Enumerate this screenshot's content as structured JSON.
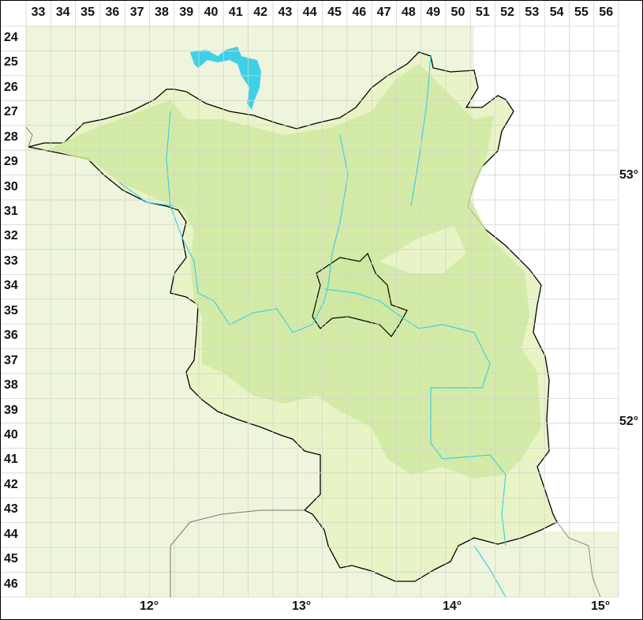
{
  "map": {
    "columns": [
      "33",
      "34",
      "35",
      "36",
      "37",
      "38",
      "39",
      "40",
      "41",
      "42",
      "43",
      "44",
      "45",
      "46",
      "47",
      "48",
      "49",
      "50",
      "51",
      "52",
      "53",
      "54",
      "55",
      "56"
    ],
    "rows": [
      "24",
      "25",
      "26",
      "27",
      "28",
      "29",
      "30",
      "31",
      "32",
      "33",
      "34",
      "35",
      "36",
      "37",
      "38",
      "39",
      "40",
      "41",
      "42",
      "43",
      "44",
      "45",
      "46"
    ],
    "latitude_labels": [
      "53°",
      "52°"
    ],
    "longitude_labels": [
      "12°",
      "13°",
      "14°",
      "15°"
    ],
    "colors": {
      "background_land": "#eef5dc",
      "region_fill": "#e6f3c2",
      "dense_green": "#cfe9a0",
      "water": "#3fd0e8",
      "border": "#000000",
      "grid": "#d8dcd0"
    }
  }
}
